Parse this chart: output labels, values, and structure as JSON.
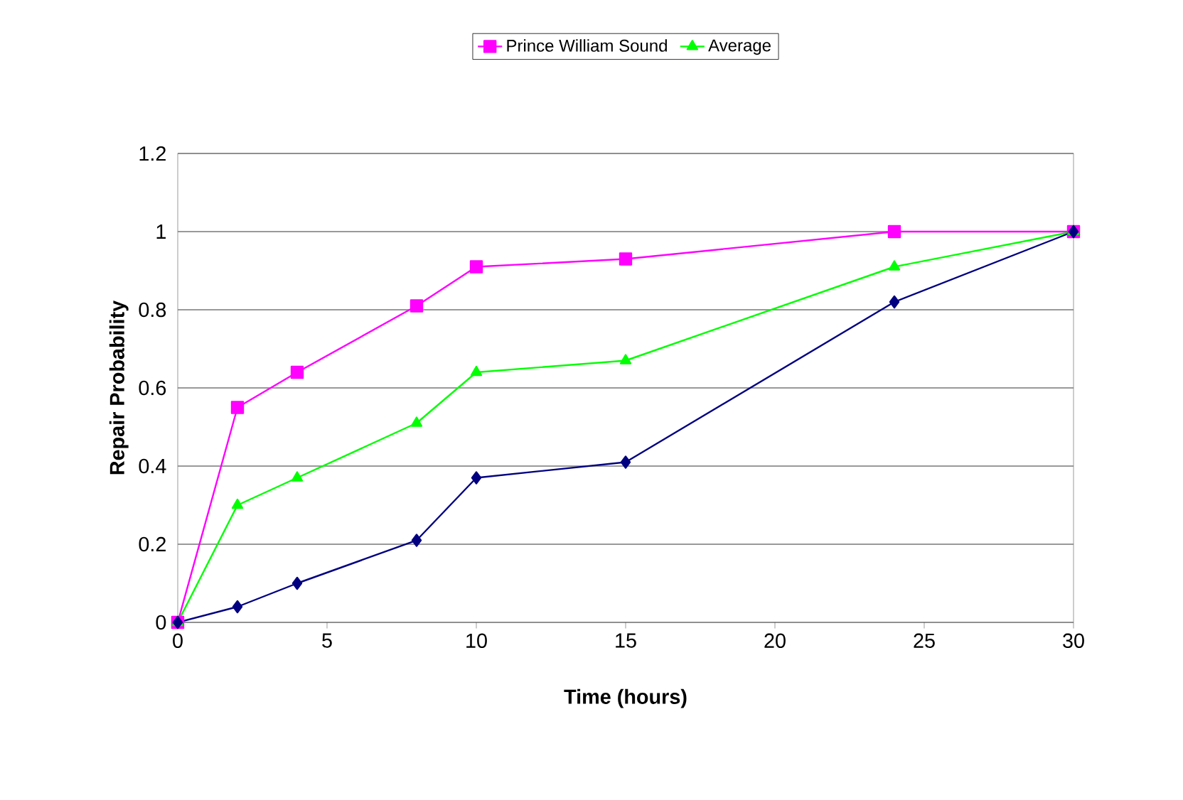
{
  "chart_data": {
    "type": "line",
    "xlabel": "Time (hours)",
    "ylabel": "Repair Probability",
    "x": [
      0,
      2,
      4,
      8,
      10,
      15,
      24,
      30
    ],
    "series": [
      {
        "color": "#000080",
        "marker": "diamond",
        "values": [
          0,
          0.04,
          0.1,
          0.21,
          0.37,
          0.41,
          0.82,
          1
        ]
      },
      {
        "name": "Prince William Sound",
        "color": "#ff00ff",
        "marker": "square",
        "values": [
          0,
          0.55,
          0.64,
          0.81,
          0.91,
          0.93,
          1,
          1
        ]
      },
      {
        "name": "Average",
        "color": "#00ff00",
        "marker": "triangle",
        "values": [
          0,
          0.3,
          0.37,
          0.51,
          0.64,
          0.67,
          0.91,
          1
        ]
      }
    ],
    "xlim": [
      0,
      30
    ],
    "ylim": [
      0,
      1.2
    ],
    "xticks": [
      0,
      5,
      10,
      15,
      20,
      25,
      30
    ],
    "yticks": [
      0,
      0.2,
      0.4,
      0.6,
      0.8,
      1,
      1.2
    ],
    "grid": "y",
    "legend": "top",
    "line_style": "solid"
  }
}
